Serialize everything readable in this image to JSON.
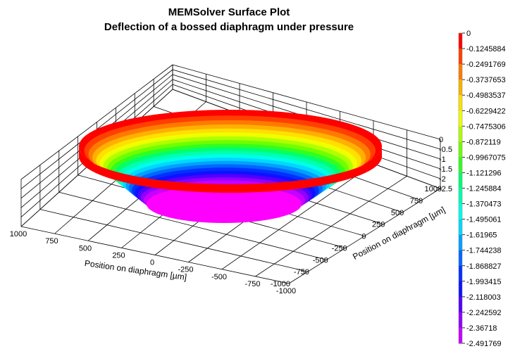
{
  "chart_data": {
    "type": "surface",
    "title": "MEMSolver Surface Plot",
    "subtitle": "Deflection of a bossed diaphragm under pressure",
    "xlabel": "Position on diaphragm [µm]",
    "ylabel": "Position on diaphragm [µm]",
    "x_ticks": [
      "1000",
      "750",
      "500",
      "250",
      "0",
      "-250",
      "-500",
      "-750",
      "-1000"
    ],
    "y_ticks": [
      "-1000",
      "-750",
      "-500",
      "-250",
      "0",
      "250",
      "500",
      "750",
      "1000"
    ],
    "z_ticks": [
      "0",
      "-0.5",
      "-1",
      "-1.5",
      "-2",
      "-2.5"
    ],
    "xlim": [
      -1000,
      1000
    ],
    "ylim": [
      -1000,
      1000
    ],
    "zlim": [
      -2.5,
      0
    ],
    "grid": true,
    "surface": {
      "shape": "circular bossed diaphragm",
      "outer_radius": 1000,
      "boss_radius": 500,
      "max_deflection": -2.491769
    },
    "colorbar": {
      "labels": [
        "0",
        "-0.1245884",
        "-0.2491769",
        "-0.3737653",
        "-0.4983537",
        "-0.6229422",
        "-0.7475306",
        "-0.872119",
        "-0.9967075",
        "-1.121296",
        "-1.245884",
        "-1.370473",
        "-1.495061",
        "-1.61965",
        "-1.744238",
        "-1.868827",
        "-1.993415",
        "-2.118003",
        "-2.242592",
        "-2.36718",
        "-2.491769"
      ],
      "colors": [
        "#ff0000",
        "#ff4000",
        "#ff7a00",
        "#ffb000",
        "#ffe000",
        "#f0ff00",
        "#b0ff00",
        "#70ff00",
        "#30ff20",
        "#00ff70",
        "#00ffb0",
        "#00ffe8",
        "#00d8ff",
        "#00a0ff",
        "#0066ff",
        "#0030ff",
        "#1010ff",
        "#5000ff",
        "#9000ff",
        "#c800ff",
        "#ff00ff"
      ]
    }
  }
}
